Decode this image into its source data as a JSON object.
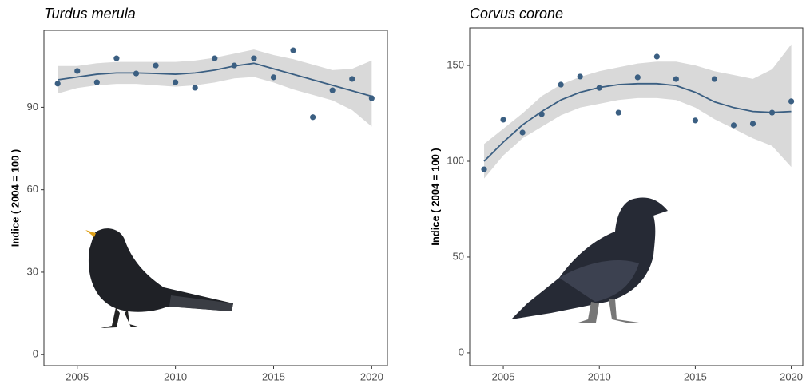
{
  "chart_data": [
    {
      "type": "scatter",
      "title": "Turdus merula",
      "y_label": "Indice ( 2004 = 100 )",
      "x": [
        2004,
        2005,
        2006,
        2007,
        2008,
        2009,
        2010,
        2011,
        2012,
        2013,
        2014,
        2015,
        2016,
        2017,
        2018,
        2019,
        2020
      ],
      "values": [
        98.6,
        103.2,
        99.1,
        107.8,
        102.3,
        105.2,
        99.1,
        97.1,
        107.8,
        105.2,
        107.8,
        100.9,
        110.7,
        86.4,
        96.2,
        100.3,
        93.3
      ],
      "trend": [
        100,
        101,
        102,
        102.5,
        102.5,
        102.3,
        102,
        102.5,
        103.5,
        105,
        106,
        104,
        102,
        100,
        98,
        96,
        94
      ],
      "trend_lower": [
        95,
        97,
        98,
        98.5,
        98.5,
        98,
        97.5,
        98,
        99,
        100.5,
        101,
        99,
        96.5,
        94.5,
        92.5,
        89,
        83
      ],
      "trend_upper": [
        105,
        105,
        106,
        106.5,
        106.5,
        106.5,
        106.5,
        107,
        108,
        109.5,
        111,
        109,
        107.5,
        105.5,
        103.5,
        104,
        107
      ],
      "color": "#3b5f82",
      "band_color": "#d9d9d9",
      "xlim": [
        2003.3,
        2020.8
      ],
      "xticks": [
        2005,
        2010,
        2015,
        2020
      ],
      "ylim": [
        -4,
        118
      ],
      "yticks": [
        0,
        30,
        60,
        90
      ]
    },
    {
      "type": "scatter",
      "title": "Corvus corone",
      "y_label": "Indice ( 2004 = 100 )",
      "x": [
        2004,
        2005,
        2006,
        2007,
        2008,
        2009,
        2010,
        2011,
        2012,
        2013,
        2014,
        2015,
        2016,
        2017,
        2018,
        2019,
        2020
      ],
      "values": [
        95.8,
        121.7,
        115,
        124.6,
        140,
        144.2,
        138.3,
        125.4,
        143.8,
        154.6,
        142.9,
        121.3,
        142.9,
        118.8,
        119.6,
        125.4,
        131.3
      ],
      "trend": [
        100,
        110,
        119,
        126,
        132,
        136,
        138.5,
        140,
        140.5,
        140.5,
        139.5,
        136,
        131,
        128,
        126,
        125.5,
        126
      ],
      "trend_lower": [
        91,
        103,
        112,
        118,
        124,
        128,
        130,
        132,
        133,
        133,
        132,
        128,
        122,
        117,
        112,
        108,
        97
      ],
      "trend_upper": [
        109,
        117,
        125,
        134,
        140,
        144,
        147,
        149,
        151,
        152,
        152,
        150,
        147,
        145,
        143,
        148,
        161
      ],
      "color": "#3b5f82",
      "band_color": "#d9d9d9",
      "xlim": [
        2003.25,
        2020.6
      ],
      "xticks": [
        2005,
        2010,
        2015,
        2020
      ],
      "ylim": [
        -6.7,
        169.6
      ],
      "yticks": [
        0,
        50,
        100,
        150
      ]
    }
  ]
}
